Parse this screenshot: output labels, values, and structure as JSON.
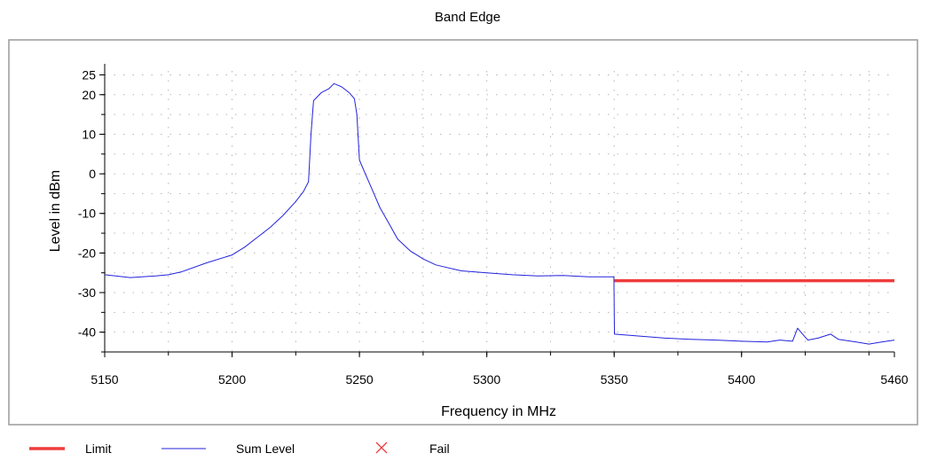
{
  "chart_data": {
    "type": "line",
    "title": "Band Edge",
    "xlabel": "Frequency in MHz",
    "ylabel": "Level in dBm",
    "xlim": [
      5150,
      5460
    ],
    "ylim": [
      -45,
      26
    ],
    "x_ticks": [
      5150,
      5200,
      5250,
      5300,
      5350,
      5400,
      5460
    ],
    "x_tick_labels": [
      "5150",
      "5200",
      "5250",
      "5300",
      "5350",
      "5400",
      "5460"
    ],
    "y_ticks": [
      25,
      20,
      10,
      0,
      -10,
      -20,
      -30,
      -40
    ],
    "y_tick_labels": [
      "25",
      "20",
      "10",
      "0",
      "-10",
      "-20",
      "-30",
      "-40"
    ],
    "grid": true,
    "legend_position": "bottom",
    "series": [
      {
        "name": "Limit",
        "color": "#f03c3c",
        "x": [
          5350,
          5460
        ],
        "y": [
          -27,
          -27
        ]
      },
      {
        "name": "Sum Level",
        "color": "#2222dd",
        "x": [
          5150,
          5160,
          5170,
          5175,
          5180,
          5190,
          5200,
          5205,
          5210,
          5215,
          5220,
          5225,
          5228,
          5230,
          5231,
          5232,
          5235,
          5238,
          5240,
          5243,
          5246,
          5248,
          5249,
          5250,
          5252,
          5255,
          5258,
          5262,
          5265,
          5270,
          5275,
          5280,
          5290,
          5300,
          5310,
          5320,
          5330,
          5340,
          5349.9,
          5350.1,
          5360,
          5370,
          5380,
          5390,
          5400,
          5410,
          5415,
          5420,
          5422,
          5424,
          5426,
          5430,
          5435,
          5438,
          5440,
          5445,
          5450,
          5455,
          5460
        ],
        "y": [
          -25.5,
          -26.2,
          -25.8,
          -25.5,
          -24.8,
          -22.5,
          -20.5,
          -18.5,
          -16.0,
          -13.5,
          -10.5,
          -7.0,
          -4.5,
          -2.0,
          10.0,
          18.5,
          20.5,
          21.5,
          22.8,
          22.0,
          20.5,
          19.0,
          15.0,
          3.5,
          0.5,
          -4.0,
          -8.5,
          -13.0,
          -16.5,
          -19.5,
          -21.5,
          -23.0,
          -24.5,
          -25.0,
          -25.5,
          -25.8,
          -25.7,
          -26.0,
          -26.0,
          -40.5,
          -41.0,
          -41.5,
          -41.8,
          -42.0,
          -42.3,
          -42.5,
          -42.0,
          -42.3,
          -39.0,
          -40.5,
          -42.0,
          -41.5,
          -40.5,
          -41.8,
          -42.0,
          -42.5,
          -43.0,
          -42.5,
          -42.0
        ]
      }
    ]
  },
  "legend": {
    "items": [
      {
        "label": "Limit",
        "color": "#f03c3c",
        "kind": "thick-line"
      },
      {
        "label": "Sum Level",
        "color": "#2222dd",
        "kind": "thin-line"
      },
      {
        "label": "Fail",
        "color": "#f03c3c",
        "kind": "cross"
      }
    ]
  }
}
